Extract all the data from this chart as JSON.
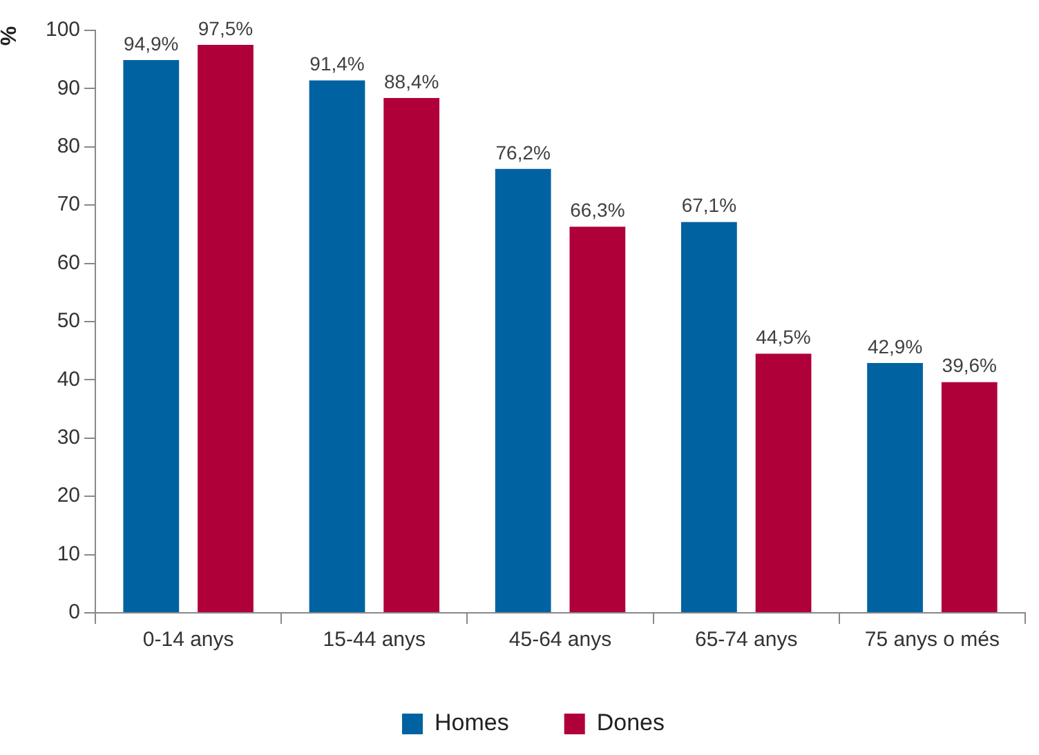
{
  "chart_data": {
    "type": "bar",
    "ylabel": "%",
    "categories": [
      "0-14 anys",
      "15-44 anys",
      "45-64 anys",
      "65-74 anys",
      "75 anys o més"
    ],
    "series": [
      {
        "name": "Homes",
        "color": "#0062a1",
        "values": [
          94.9,
          91.4,
          76.2,
          67.1,
          42.9
        ],
        "value_labels": [
          "94,9%",
          "91,4%",
          "76,2%",
          "67,1%",
          "42,9%"
        ]
      },
      {
        "name": "Dones",
        "color": "#b0003a",
        "values": [
          97.5,
          88.4,
          66.3,
          44.5,
          39.6
        ],
        "value_labels": [
          "97,5%",
          "88,4%",
          "66,3%",
          "44,5%",
          "39,6%"
        ]
      }
    ],
    "ylim": [
      0,
      100
    ],
    "yticks": [
      0,
      10,
      20,
      30,
      40,
      50,
      60,
      70,
      80,
      90,
      100
    ],
    "grid": false,
    "legend": "bottom"
  }
}
